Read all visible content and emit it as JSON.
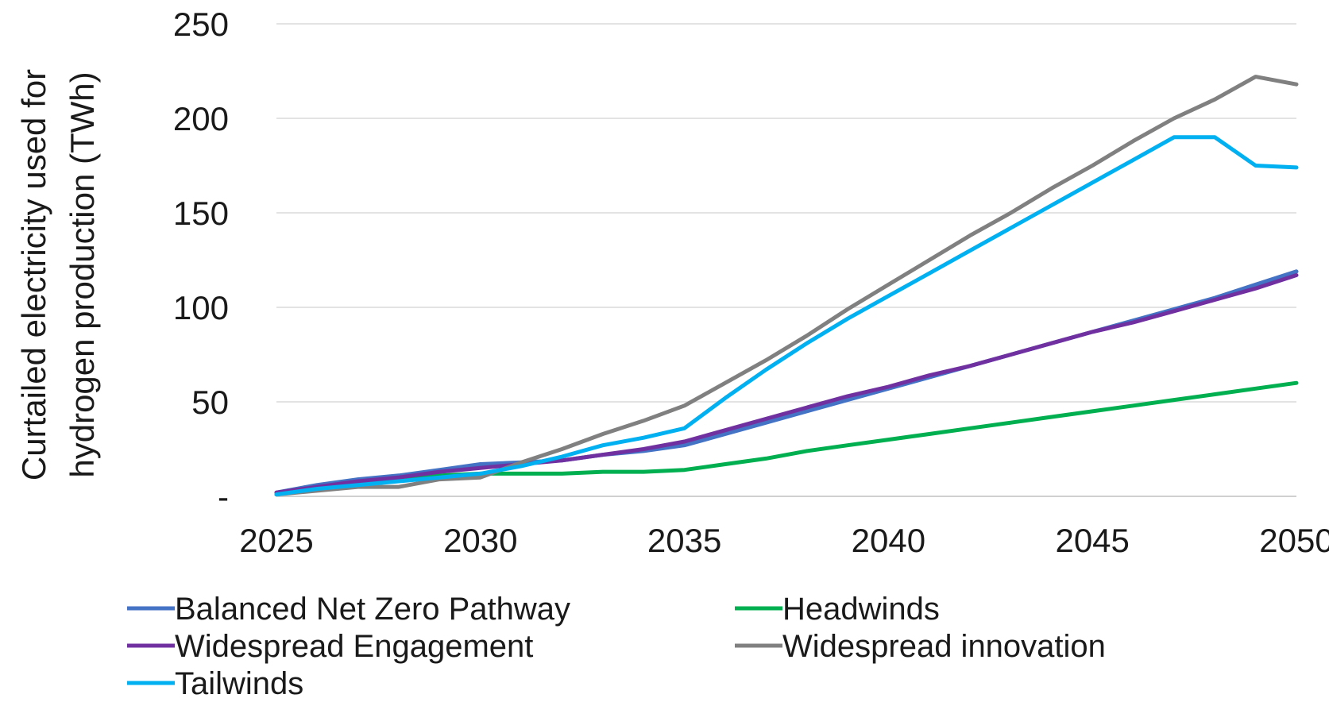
{
  "chart_data": {
    "type": "line",
    "ylabel_line1": "Curtailed electricity used for",
    "ylabel_line2": "hydrogen production (TWh)",
    "xlim": [
      2025,
      2050
    ],
    "ylim": [
      0,
      250
    ],
    "xticks": [
      "2025",
      "2030",
      "2035",
      "2040",
      "2045",
      "2050"
    ],
    "yticks": [
      {
        "value": 0,
        "label": "-"
      },
      {
        "value": 50,
        "label": "50"
      },
      {
        "value": 100,
        "label": "100"
      },
      {
        "value": 150,
        "label": "150"
      },
      {
        "value": 200,
        "label": "200"
      },
      {
        "value": 250,
        "label": "250"
      }
    ],
    "grid": true,
    "legend_position": "bottom",
    "x": [
      2025,
      2026,
      2027,
      2028,
      2029,
      2030,
      2031,
      2032,
      2033,
      2034,
      2035,
      2036,
      2037,
      2038,
      2039,
      2040,
      2041,
      2042,
      2043,
      2044,
      2045,
      2046,
      2047,
      2048,
      2049,
      2050
    ],
    "series": [
      {
        "name": "Balanced Net Zero Pathway",
        "color": "#4472c4",
        "values": [
          2,
          6,
          9,
          11,
          14,
          17,
          18,
          19,
          22,
          24,
          27,
          33,
          39,
          45,
          51,
          57,
          63,
          69,
          75,
          81,
          87,
          93,
          99,
          105,
          112,
          119
        ]
      },
      {
        "name": "Headwinds",
        "color": "#00b050",
        "values": [
          1,
          4,
          7,
          9,
          11,
          12,
          12,
          12,
          13,
          13,
          14,
          17,
          20,
          24,
          27,
          30,
          33,
          36,
          39,
          42,
          45,
          48,
          51,
          54,
          57,
          60
        ]
      },
      {
        "name": "Widespread Engagement",
        "color": "#7030a0",
        "values": [
          2,
          5,
          8,
          10,
          13,
          15,
          17,
          19,
          22,
          25,
          29,
          35,
          41,
          47,
          53,
          58,
          64,
          69,
          75,
          81,
          87,
          92,
          98,
          104,
          110,
          117
        ]
      },
      {
        "name": "Widespread innovation",
        "color": "#808080",
        "values": [
          1,
          3,
          5,
          5,
          9,
          10,
          18,
          25,
          33,
          40,
          48,
          60,
          72,
          85,
          99,
          112,
          125,
          138,
          150,
          163,
          175,
          188,
          200,
          210,
          222,
          218
        ]
      },
      {
        "name": "Tailwinds",
        "color": "#00b0f0",
        "values": [
          1,
          4,
          6,
          8,
          10,
          12,
          16,
          21,
          27,
          31,
          36,
          52,
          67,
          81,
          94,
          106,
          118,
          130,
          142,
          154,
          166,
          178,
          190,
          190,
          175,
          174
        ]
      }
    ]
  }
}
